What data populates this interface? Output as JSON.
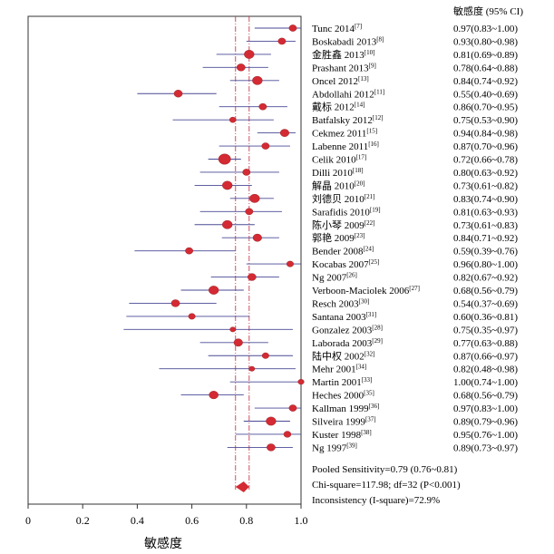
{
  "chart_data": {
    "type": "forest",
    "column_header": "敏感度 (95% CI)",
    "xlabel": "敏感度",
    "xlim": [
      0,
      1
    ],
    "x_ticks": [
      "0",
      "0.2",
      "0.4",
      "0.6",
      "0.8",
      "1.0"
    ],
    "pooled_line": 0.79,
    "studies": [
      {
        "label": "Tunc 2014",
        "ref": "[7]",
        "value": 0.97,
        "lo": 0.83,
        "hi": 1.0,
        "text": "0.97(0.83~1.00)",
        "weight": 1.0
      },
      {
        "label": "Boskabadi 2013",
        "ref": "[8]",
        "value": 0.93,
        "lo": 0.8,
        "hi": 0.98,
        "text": "0.93(0.80~0.98)",
        "weight": 1.0
      },
      {
        "label": "金胜鑫 2013",
        "ref": "[10]",
        "value": 0.81,
        "lo": 0.69,
        "hi": 0.89,
        "text": "0.81(0.69~0.89)",
        "weight": 1.3
      },
      {
        "label": "Prashant 2013",
        "ref": "[9]",
        "value": 0.78,
        "lo": 0.64,
        "hi": 0.88,
        "text": "0.78(0.64~0.88)",
        "weight": 1.1
      },
      {
        "label": "Oncel 2012",
        "ref": "[13]",
        "value": 0.84,
        "lo": 0.74,
        "hi": 0.92,
        "text": "0.84(0.74~0.92)",
        "weight": 1.3
      },
      {
        "label": "Abdollahi 2012",
        "ref": "[11]",
        "value": 0.55,
        "lo": 0.4,
        "hi": 0.69,
        "text": "0.55(0.40~0.69)",
        "weight": 1.1
      },
      {
        "label": "戴标 2012",
        "ref": "[14]",
        "value": 0.86,
        "lo": 0.7,
        "hi": 0.95,
        "text": "0.86(0.70~0.95)",
        "weight": 1.0
      },
      {
        "label": "Batfalsky 2012",
        "ref": "[12]",
        "value": 0.75,
        "lo": 0.53,
        "hi": 0.9,
        "text": "0.75(0.53~0.90)",
        "weight": 0.85
      },
      {
        "label": "Cekmez 2011",
        "ref": "[15]",
        "value": 0.94,
        "lo": 0.84,
        "hi": 0.98,
        "text": "0.94(0.84~0.98)",
        "weight": 1.15
      },
      {
        "label": "Labenne 2011",
        "ref": "[16]",
        "value": 0.87,
        "lo": 0.7,
        "hi": 0.96,
        "text": "0.87(0.70~0.96)",
        "weight": 1.0
      },
      {
        "label": "Celik 2010",
        "ref": "[17]",
        "value": 0.72,
        "lo": 0.66,
        "hi": 0.78,
        "text": "0.72(0.66~0.78)",
        "weight": 1.6
      },
      {
        "label": "Dilli 2010",
        "ref": "[18]",
        "value": 0.8,
        "lo": 0.63,
        "hi": 0.92,
        "text": "0.80(0.63~0.92)",
        "weight": 1.0
      },
      {
        "label": "解晶 2010",
        "ref": "[20]",
        "value": 0.73,
        "lo": 0.61,
        "hi": 0.82,
        "text": "0.73(0.61~0.82)",
        "weight": 1.3
      },
      {
        "label": "刘德贝 2010",
        "ref": "[21]",
        "value": 0.83,
        "lo": 0.74,
        "hi": 0.9,
        "text": "0.83(0.74~0.90)",
        "weight": 1.3
      },
      {
        "label": "Sarafidis 2010",
        "ref": "[19]",
        "value": 0.81,
        "lo": 0.63,
        "hi": 0.93,
        "text": "0.81(0.63~0.93)",
        "weight": 1.0
      },
      {
        "label": "陈小琴 2009",
        "ref": "[22]",
        "value": 0.73,
        "lo": 0.61,
        "hi": 0.83,
        "text": "0.73(0.61~0.83)",
        "weight": 1.3
      },
      {
        "label": "郭艳 2009",
        "ref": "[23]",
        "value": 0.84,
        "lo": 0.71,
        "hi": 0.92,
        "text": "0.84(0.71~0.92)",
        "weight": 1.15
      },
      {
        "label": "Bender 2008",
        "ref": "[24]",
        "value": 0.59,
        "lo": 0.39,
        "hi": 0.76,
        "text": "0.59(0.39~0.76)",
        "weight": 1.0
      },
      {
        "label": "Kocabas 2007",
        "ref": "[25]",
        "value": 0.96,
        "lo": 0.8,
        "hi": 1.0,
        "text": "0.96(0.80~1.00)",
        "weight": 0.9
      },
      {
        "label": "Ng 2007",
        "ref": "[26]",
        "value": 0.82,
        "lo": 0.67,
        "hi": 0.92,
        "text": "0.82(0.67~0.92)",
        "weight": 1.1
      },
      {
        "label": "Verboon-Maciolek 2006",
        "ref": "[27]",
        "value": 0.68,
        "lo": 0.56,
        "hi": 0.79,
        "text": "0.68(0.56~0.79)",
        "weight": 1.3
      },
      {
        "label": "Resch 2003",
        "ref": "[30]",
        "value": 0.54,
        "lo": 0.37,
        "hi": 0.69,
        "text": "0.54(0.37~0.69)",
        "weight": 1.1
      },
      {
        "label": "Santana 2003",
        "ref": "[31]",
        "value": 0.6,
        "lo": 0.36,
        "hi": 0.81,
        "text": "0.60(0.36~0.81)",
        "weight": 0.9
      },
      {
        "label": "Gonzalez 2003",
        "ref": "[28]",
        "value": 0.75,
        "lo": 0.35,
        "hi": 0.97,
        "text": "0.75(0.35~0.97)",
        "weight": 0.75
      },
      {
        "label": "Laborada 2003",
        "ref": "[29]",
        "value": 0.77,
        "lo": 0.63,
        "hi": 0.88,
        "text": "0.77(0.63~0.88)",
        "weight": 1.15
      },
      {
        "label": "陆中权 2002",
        "ref": "[32]",
        "value": 0.87,
        "lo": 0.66,
        "hi": 0.97,
        "text": "0.87(0.66~0.97)",
        "weight": 0.9
      },
      {
        "label": "Mehr 2001",
        "ref": "[34]",
        "value": 0.82,
        "lo": 0.48,
        "hi": 0.98,
        "text": "0.82(0.48~0.98)",
        "weight": 0.75
      },
      {
        "label": "Martin 2001",
        "ref": "[33]",
        "value": 1.0,
        "lo": 0.74,
        "hi": 1.0,
        "text": "1.00(0.74~1.00)",
        "weight": 0.8
      },
      {
        "label": "Heches 2000",
        "ref": "[35]",
        "value": 0.68,
        "lo": 0.56,
        "hi": 0.79,
        "text": "0.68(0.56~0.79)",
        "weight": 1.2
      },
      {
        "label": "Kallman 1999",
        "ref": "[36]",
        "value": 0.97,
        "lo": 0.83,
        "hi": 1.0,
        "text": "0.97(0.83~1.00)",
        "weight": 1.0
      },
      {
        "label": "Silveira 1999",
        "ref": "[37]",
        "value": 0.89,
        "lo": 0.79,
        "hi": 0.96,
        "text": "0.89(0.79~0.96)",
        "weight": 1.3
      },
      {
        "label": "Kuster 1998",
        "ref": "[38]",
        "value": 0.95,
        "lo": 0.76,
        "hi": 1.0,
        "text": "0.95(0.76~1.00)",
        "weight": 0.95
      },
      {
        "label": "Ng 1997",
        "ref": "[39]",
        "value": 0.89,
        "lo": 0.73,
        "hi": 0.97,
        "text": "0.89(0.73~0.97)",
        "weight": 1.1
      }
    ],
    "pooled": {
      "value": 0.79,
      "lo": 0.76,
      "hi": 0.81
    },
    "stats": [
      "Pooled Sensitivity=0.79 (0.76~0.81)",
      "Chi-square=117.98; df=32 (P<0.001)",
      "Inconsistency (I-square)=72.9%"
    ],
    "colors": {
      "marker": "#d42a33",
      "ci_line": "#4a4a96",
      "ref_line": "#c83c50",
      "pooled_diamond": "#d42a33"
    }
  }
}
